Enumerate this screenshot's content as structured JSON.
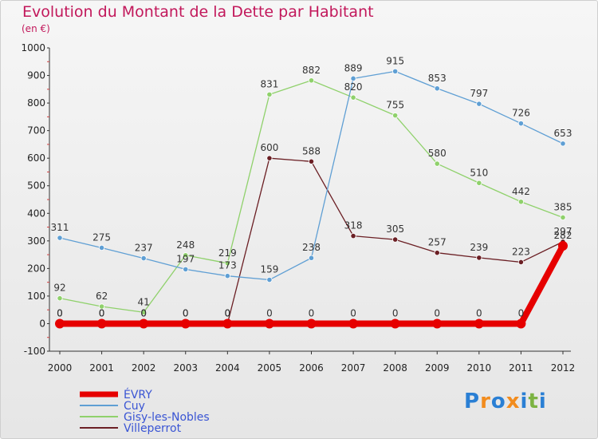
{
  "header": {
    "title": "Evolution du Montant de la Dette par Habitant",
    "subtitle": "(en €)"
  },
  "logo": {
    "text": "Proxiti",
    "colors": [
      "#2a7fd4",
      "#f28c1e",
      "#2a7fd4",
      "#f28c1e",
      "#2a7fd4",
      "#7cb342",
      "#2a7fd4"
    ]
  },
  "chart_data": {
    "type": "line",
    "x": [
      "2000",
      "2001",
      "2002",
      "2003",
      "2004",
      "2005",
      "2006",
      "2007",
      "2008",
      "2009",
      "2010",
      "2011",
      "2012"
    ],
    "ylim": [
      -100,
      1000
    ],
    "yticks": [
      -100,
      0,
      100,
      200,
      300,
      400,
      500,
      600,
      700,
      800,
      900,
      1000
    ],
    "grid": false,
    "legend_position": "bottom-left",
    "series": [
      {
        "name": "Gisy-les-Nobles",
        "color": "#8fd16b",
        "values": [
          92,
          62,
          41,
          248,
          219,
          831,
          882,
          820,
          755,
          580,
          510,
          442,
          385
        ]
      },
      {
        "name": "Villeperrot",
        "color": "#6b1f24",
        "values": [
          0,
          0,
          0,
          0,
          0,
          600,
          588,
          318,
          305,
          257,
          239,
          223,
          297
        ]
      },
      {
        "name": "Cuy",
        "color": "#5f9fd4",
        "values": [
          311,
          275,
          237,
          197,
          173,
          159,
          238,
          889,
          915,
          853,
          797,
          726,
          653
        ]
      },
      {
        "name": "ÉVRY",
        "color": "#e60000",
        "values": [
          0,
          0,
          0,
          0,
          0,
          0,
          0,
          0,
          0,
          0,
          0,
          0,
          282
        ]
      }
    ],
    "legend_order": [
      "ÉVRY",
      "Cuy",
      "Gisy-les-Nobles",
      "Villeperrot"
    ]
  }
}
